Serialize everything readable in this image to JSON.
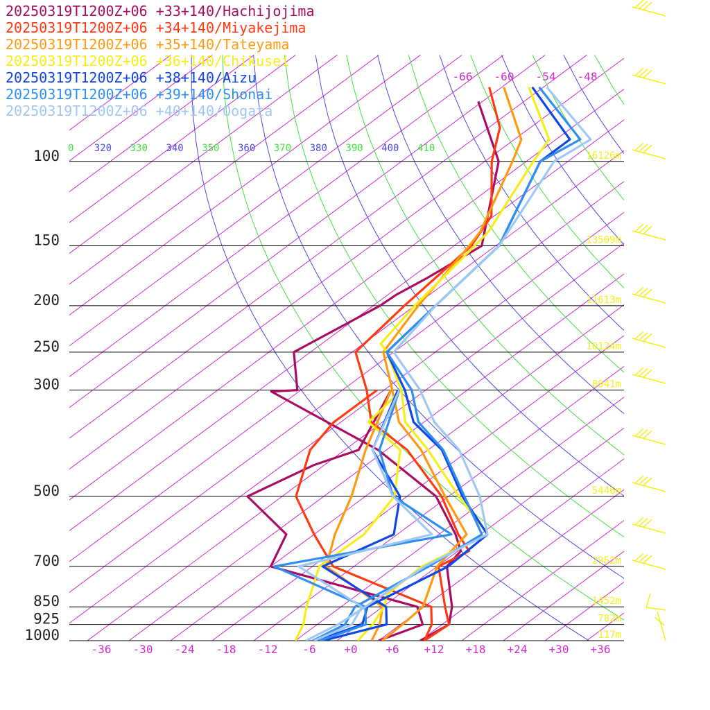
{
  "chart_data": {
    "type": "line",
    "legend": [
      {
        "label": "20250319T1200Z+06 +33+140/Hachijojima",
        "color": "#a80d62"
      },
      {
        "label": "20250319T1200Z+06 +34+140/Miyakejima",
        "color": "#ff3a12"
      },
      {
        "label": "20250319T1200Z+06 +35+140/Tateyama",
        "color": "#ff9a10"
      },
      {
        "label": "20250319T1200Z+06 +36+140/Chikusei",
        "color": "#f6ee18"
      },
      {
        "label": "20250319T1200Z+06 +38+140/Aizu",
        "color": "#0f47e6"
      },
      {
        "label": "20250319T1200Z+06 +39+140/Shonai",
        "color": "#2f8ff0"
      },
      {
        "label": "20250319T1200Z+06 +40+140/Oogata",
        "color": "#a0c8f5"
      }
    ],
    "pressure_levels": [
      {
        "p": 100,
        "height": "16126m"
      },
      {
        "p": 150,
        "height": "13509m"
      },
      {
        "p": 200,
        "height": "11613m"
      },
      {
        "p": 250,
        "height": "10124m"
      },
      {
        "p": 300,
        "height": "8941m"
      },
      {
        "p": 500,
        "height": "5446m"
      },
      {
        "p": 700,
        "height": "2952m"
      },
      {
        "p": 850,
        "height": "1452m"
      },
      {
        "p": 925,
        "height": "782m"
      },
      {
        "p": 1000,
        "height": "117m"
      }
    ],
    "x_ticks": [
      "-36",
      "-30",
      "-24",
      "-18",
      "-12",
      "-6",
      "+0",
      "+6",
      "+12",
      "+18",
      "+24",
      "+30",
      "+36"
    ],
    "theta_labels": [
      "0",
      "320",
      "330",
      "340",
      "350",
      "360",
      "370",
      "380",
      "390",
      "400",
      "410"
    ],
    "top_temp_labels": [
      "-66",
      "-60",
      "-54",
      "-48"
    ],
    "series": [
      {
        "name": "Hachijojima",
        "color": "#a80d62",
        "temp": [
          [
            75,
            -86.6
          ],
          [
            100,
            -72
          ],
          [
            150,
            -58
          ],
          [
            175,
            -59.6
          ],
          [
            190,
            -60.8
          ],
          [
            200,
            -61
          ],
          [
            250,
            -64.4
          ],
          [
            300,
            -56.5
          ],
          [
            302,
            -60
          ],
          [
            400,
            -33.2
          ],
          [
            500,
            -15.8
          ],
          [
            600,
            -5.6
          ],
          [
            650,
            -1.6
          ],
          [
            700,
            -0.6
          ],
          [
            850,
            8
          ],
          [
            925,
            11
          ],
          [
            1000,
            10
          ]
        ],
        "dew": [
          [
            300,
            -43
          ],
          [
            400,
            -36
          ],
          [
            430,
            -39.5
          ],
          [
            500,
            -43
          ],
          [
            600,
            -30
          ],
          [
            700,
            -26
          ],
          [
            850,
            3
          ],
          [
            925,
            7.2
          ],
          [
            1000,
            4
          ]
        ]
      },
      {
        "name": "Miyakejima",
        "color": "#ff3a12",
        "temp": [
          [
            70,
            -87.8
          ],
          [
            85,
            -78.4
          ],
          [
            100,
            -73
          ],
          [
            130,
            -62.4
          ],
          [
            150,
            -59.5
          ],
          [
            200,
            -57.5
          ],
          [
            250,
            -55.5
          ],
          [
            300,
            -46.5
          ],
          [
            350,
            -39.6
          ],
          [
            400,
            -29
          ],
          [
            500,
            -15
          ],
          [
            600,
            -5.2
          ],
          [
            650,
            -0.4
          ],
          [
            700,
            -1.8
          ],
          [
            850,
            7
          ],
          [
            925,
            11
          ],
          [
            1000,
            10.6
          ]
        ],
        "dew": [
          [
            300,
            -45
          ],
          [
            350,
            -45
          ],
          [
            400,
            -43
          ],
          [
            500,
            -36
          ],
          [
            600,
            -26
          ],
          [
            700,
            -17
          ],
          [
            850,
            5
          ],
          [
            925,
            8.5
          ],
          [
            1000,
            10.6
          ]
        ]
      },
      {
        "name": "Tateyama",
        "color": "#ff9a10",
        "temp": [
          [
            70,
            -85.7
          ],
          [
            90,
            -73
          ],
          [
            100,
            -70
          ],
          [
            140,
            -61
          ],
          [
            150,
            -59.8
          ],
          [
            200,
            -55.5
          ],
          [
            250,
            -51.5
          ],
          [
            300,
            -42.8
          ],
          [
            350,
            -35.6
          ],
          [
            400,
            -27
          ],
          [
            500,
            -14.5
          ],
          [
            600,
            -4
          ],
          [
            700,
            -2
          ],
          [
            850,
            3.8
          ],
          [
            925,
            4.3
          ],
          [
            1000,
            4.5
          ]
        ],
        "dew": [
          [
            300,
            -43
          ],
          [
            400,
            -35
          ],
          [
            500,
            -28
          ],
          [
            600,
            -23
          ],
          [
            700,
            -18
          ],
          [
            850,
            -2
          ],
          [
            925,
            1
          ],
          [
            1000,
            3
          ]
        ]
      },
      {
        "name": "Chikusei",
        "color": "#f6ee18",
        "temp": [
          [
            70,
            -82.1
          ],
          [
            90,
            -69
          ],
          [
            100,
            -67
          ],
          [
            140,
            -59.8
          ],
          [
            150,
            -59
          ],
          [
            200,
            -56
          ],
          [
            240,
            -53.5
          ],
          [
            250,
            -51
          ],
          [
            300,
            -41.5
          ],
          [
            350,
            -34.7
          ],
          [
            400,
            -26
          ],
          [
            500,
            -12.5
          ],
          [
            600,
            -1
          ],
          [
            700,
            -4.2
          ],
          [
            800,
            -3.8
          ],
          [
            850,
            -1.8
          ],
          [
            925,
            0
          ],
          [
            1000,
            1
          ]
        ],
        "dew": [
          [
            300,
            -41.5
          ],
          [
            350,
            -40
          ],
          [
            400,
            -30
          ],
          [
            500,
            -21.8
          ],
          [
            600,
            -18.8
          ],
          [
            700,
            -19
          ],
          [
            850,
            -13
          ],
          [
            925,
            -10
          ],
          [
            1000,
            -8
          ]
        ]
      },
      {
        "name": "Aizu",
        "color": "#0f47e6",
        "temp": [
          [
            70,
            -81.6
          ],
          [
            90,
            -66
          ],
          [
            100,
            -66
          ],
          [
            150,
            -55.5
          ],
          [
            200,
            -53
          ],
          [
            250,
            -51
          ],
          [
            300,
            -41
          ],
          [
            350,
            -33.5
          ],
          [
            400,
            -24
          ],
          [
            500,
            -12
          ],
          [
            600,
            -1
          ],
          [
            700,
            -0.4
          ],
          [
            850,
            -4.2
          ],
          [
            925,
            -1.5
          ],
          [
            1000,
            -5
          ]
        ],
        "dew": [
          [
            300,
            -42
          ],
          [
            400,
            -34
          ],
          [
            500,
            -21
          ],
          [
            600,
            -14.5
          ],
          [
            700,
            -18.5
          ],
          [
            850,
            -1.5
          ],
          [
            925,
            2
          ],
          [
            1000,
            -4
          ]
        ]
      },
      {
        "name": "Shonai",
        "color": "#2f8ff0",
        "temp": [
          [
            70,
            -80.6
          ],
          [
            90,
            -64.5
          ],
          [
            100,
            -66
          ],
          [
            150,
            -55.5
          ],
          [
            200,
            -53
          ],
          [
            250,
            -51
          ],
          [
            300,
            -40
          ],
          [
            350,
            -32.8
          ],
          [
            400,
            -23.8
          ],
          [
            500,
            -11.7
          ],
          [
            600,
            -1.8
          ],
          [
            700,
            -3.2
          ],
          [
            850,
            -6
          ],
          [
            925,
            -4
          ],
          [
            1000,
            -5.5
          ]
        ],
        "dew": [
          [
            300,
            -41.8
          ],
          [
            400,
            -33
          ],
          [
            500,
            -22
          ],
          [
            600,
            -6.2
          ],
          [
            700,
            -25.5
          ],
          [
            850,
            -4.5
          ],
          [
            925,
            -1
          ],
          [
            1000,
            -4.5
          ]
        ]
      },
      {
        "name": "Oogata",
        "color": "#a0c8f5",
        "temp": [
          [
            70,
            -79.5
          ],
          [
            90,
            -63
          ],
          [
            100,
            -64
          ],
          [
            150,
            -55.5
          ],
          [
            200,
            -53
          ],
          [
            250,
            -50
          ],
          [
            300,
            -38.8
          ],
          [
            350,
            -30.5
          ],
          [
            400,
            -21.5
          ],
          [
            500,
            -9.5
          ],
          [
            600,
            -1
          ],
          [
            700,
            -3.8
          ],
          [
            850,
            -4.5
          ],
          [
            925,
            -5
          ],
          [
            1000,
            -6.5
          ]
        ],
        "dew": [
          [
            300,
            -41.8
          ],
          [
            400,
            -34
          ],
          [
            500,
            -22
          ],
          [
            600,
            -9
          ],
          [
            700,
            -22
          ],
          [
            850,
            -5
          ],
          [
            925,
            -3
          ],
          [
            1000,
            -5.3
          ]
        ]
      }
    ],
    "wind_barb_color": "#f6ee18"
  }
}
